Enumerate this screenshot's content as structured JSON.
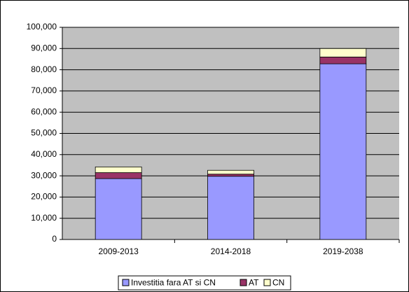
{
  "chart_data": {
    "type": "stacked_bar",
    "categories": [
      "2009-2013",
      "2014-2018",
      "2019-2038"
    ],
    "series": [
      {
        "name": "Investitia fara AT si CN",
        "color": "#9999ff",
        "values": [
          28700,
          29800,
          82800
        ]
      },
      {
        "name": "AT",
        "color": "#993366",
        "values": [
          2800,
          1000,
          3200
        ]
      },
      {
        "name": "CN",
        "color": "#ffffcc",
        "values": [
          2700,
          1800,
          4000
        ]
      }
    ],
    "ylim": [
      0,
      100000
    ],
    "yticks": [
      0,
      {
        "value": 10000,
        "label": "10,000"
      },
      {
        "value": 20000,
        "label": "20,000"
      },
      {
        "value": 30000,
        "label": "30,000"
      },
      {
        "value": 40000,
        "label": "40,000"
      },
      {
        "value": 50000,
        "label": "50,000"
      },
      {
        "value": 60000,
        "label": "60,000"
      },
      {
        "value": 70000,
        "label": "70,000"
      },
      {
        "value": 80000,
        "label": "80,000"
      },
      {
        "value": 90000,
        "label": "90,000"
      },
      {
        "value": 100000,
        "label": "100,000"
      }
    ],
    "grid": true,
    "legend": "bottom"
  }
}
